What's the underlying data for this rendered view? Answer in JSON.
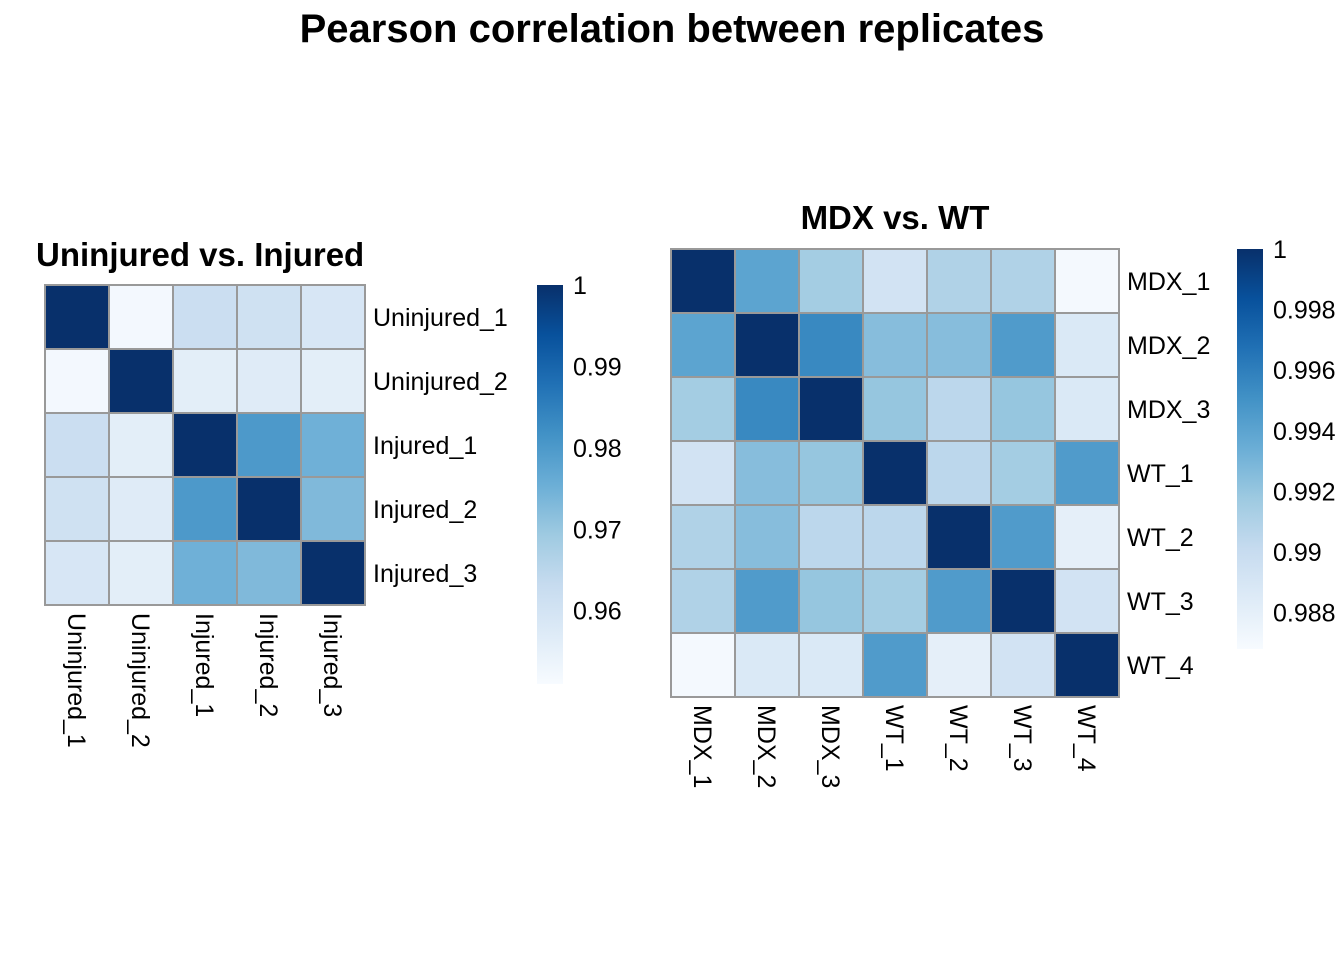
{
  "main_title": "Pearson correlation between replicates",
  "chart_data": [
    {
      "type": "heatmap",
      "title": "Uninjured vs. Injured",
      "rows": [
        "Uninjured_1",
        "Uninjured_2",
        "Injured_1",
        "Injured_2",
        "Injured_3"
      ],
      "columns": [
        "Uninjured_1",
        "Uninjured_2",
        "Injured_1",
        "Injured_2",
        "Injured_3"
      ],
      "values": [
        [
          1.0,
          0.952,
          0.962,
          0.961,
          0.959
        ],
        [
          0.952,
          1.0,
          0.956,
          0.957,
          0.956
        ],
        [
          0.962,
          0.956,
          1.0,
          0.98,
          0.975
        ],
        [
          0.961,
          0.957,
          0.98,
          1.0,
          0.973
        ],
        [
          0.959,
          0.956,
          0.975,
          0.973,
          1.0
        ]
      ],
      "color_scale": {
        "min": 0.951,
        "max": 1.0,
        "low_color": "#f7fbff",
        "high_color": "#08306b",
        "palette": "Blues"
      },
      "legend_ticks": [
        "1",
        "0.99",
        "0.98",
        "0.97",
        "0.96"
      ],
      "legend_tick_values": [
        1.0,
        0.99,
        0.98,
        0.97,
        0.96
      ]
    },
    {
      "type": "heatmap",
      "title": "MDX vs. WT",
      "rows": [
        "MDX_1",
        "MDX_2",
        "MDX_3",
        "WT_1",
        "WT_2",
        "WT_3",
        "WT_4"
      ],
      "columns": [
        "MDX_1",
        "MDX_2",
        "MDX_3",
        "WT_1",
        "WT_2",
        "WT_3",
        "WT_4"
      ],
      "values": [
        [
          1.0,
          0.994,
          0.9915,
          0.9893,
          0.991,
          0.991,
          0.987
        ],
        [
          0.994,
          1.0,
          0.9955,
          0.9925,
          0.9925,
          0.9945,
          0.9887
        ],
        [
          0.9915,
          0.9955,
          1.0,
          0.992,
          0.9905,
          0.992,
          0.9887
        ],
        [
          0.9893,
          0.9925,
          0.992,
          1.0,
          0.9905,
          0.9915,
          0.9945
        ],
        [
          0.991,
          0.9925,
          0.9905,
          0.9905,
          1.0,
          0.9945,
          0.988
        ],
        [
          0.991,
          0.9945,
          0.992,
          0.9915,
          0.9945,
          1.0,
          0.9893
        ],
        [
          0.987,
          0.9887,
          0.9887,
          0.9945,
          0.988,
          0.9893,
          1.0
        ]
      ],
      "color_scale": {
        "min": 0.9868,
        "max": 1.0,
        "low_color": "#f7fbff",
        "high_color": "#08306b",
        "palette": "Blues"
      },
      "legend_ticks": [
        "1",
        "0.998",
        "0.996",
        "0.994",
        "0.992",
        "0.99",
        "0.988"
      ],
      "legend_tick_values": [
        1.0,
        0.998,
        0.996,
        0.994,
        0.992,
        0.99,
        0.988
      ]
    }
  ]
}
